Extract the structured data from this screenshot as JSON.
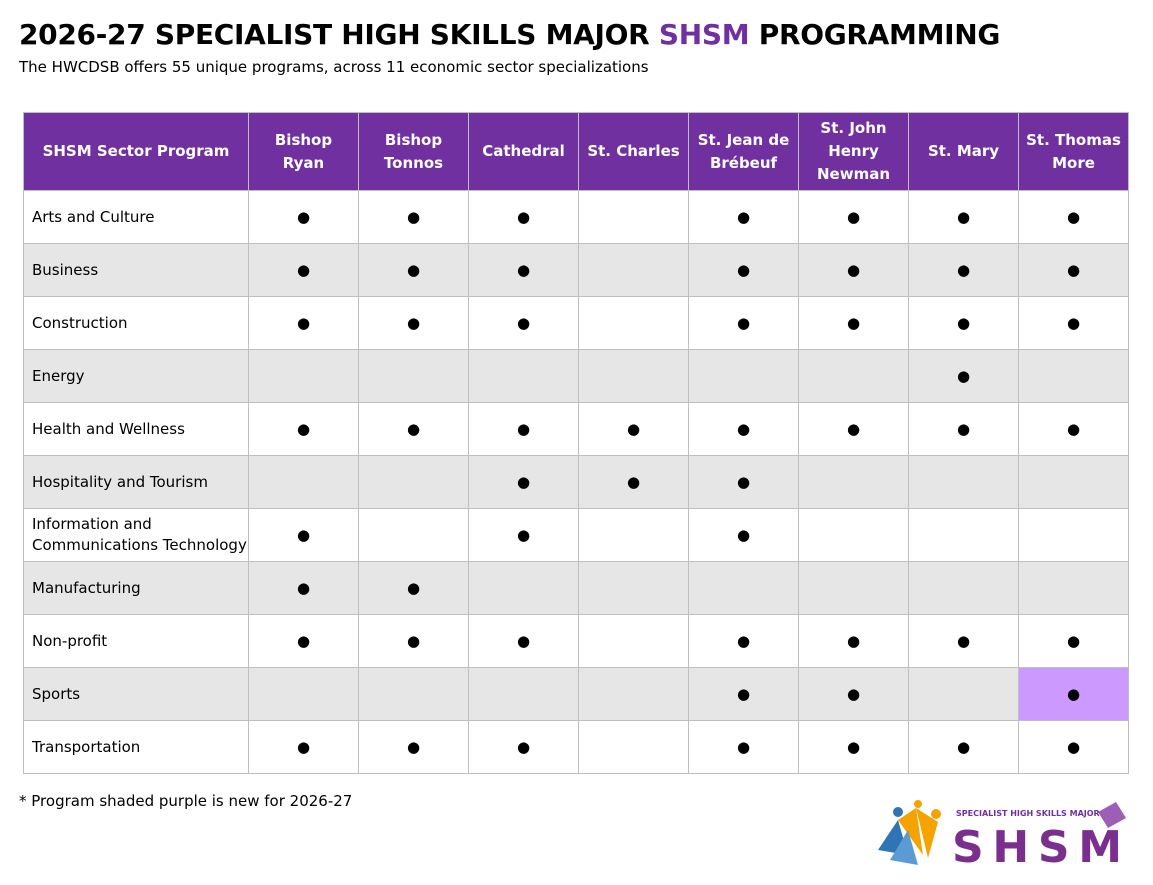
{
  "header": {
    "title_before": "2026-27 SPECIALIST HIGH SKILLS MAJOR",
    "title_highlight": "SHSM",
    "title_after": "PROGRAMMING",
    "subtitle": "The HWCDSB offers 55 unique programs, across 11 economic sector specializations"
  },
  "table": {
    "columns": [
      "SHSM Sector Program",
      "Bishop Ryan",
      "Bishop Tonnos",
      "Cathedral",
      "St. Charles",
      "St. Jean de Brébeuf",
      "St. John Henry Newman",
      "St. Mary",
      "St. Thomas More"
    ],
    "rows": [
      {
        "program": "Arts and Culture",
        "cells": [
          "●",
          "●",
          "●",
          null,
          "●",
          "●",
          "●",
          "●"
        ]
      },
      {
        "program": "Business",
        "cells": [
          "●",
          "●",
          "●",
          null,
          "●",
          "●",
          "●",
          "●"
        ]
      },
      {
        "program": "Construction",
        "cells": [
          "●",
          "●",
          "●",
          null,
          "●",
          "●",
          "●",
          "●"
        ]
      },
      {
        "program": "Energy",
        "cells": [
          null,
          null,
          null,
          null,
          null,
          null,
          "●",
          null
        ]
      },
      {
        "program": "Health and Wellness",
        "cells": [
          "●",
          "●",
          "●",
          "●",
          "●",
          "●",
          "●",
          "●"
        ]
      },
      {
        "program": "Hospitality and Tourism",
        "cells": [
          null,
          null,
          "●",
          "●",
          "●",
          null,
          null,
          null
        ]
      },
      {
        "program": "Information and Communications Technology",
        "cells": [
          "●",
          null,
          "●",
          null,
          "●",
          null,
          null,
          null
        ]
      },
      {
        "program": "Manufacturing",
        "cells": [
          "●",
          "●",
          null,
          null,
          null,
          null,
          null,
          null
        ]
      },
      {
        "program": "Non-profit",
        "cells": [
          "●",
          "●",
          "●",
          null,
          "●",
          "●",
          "●",
          "●"
        ]
      },
      {
        "program": "Sports",
        "cells": [
          null,
          null,
          null,
          null,
          "●",
          "●",
          null,
          "●"
        ]
      },
      {
        "program": "Transportation",
        "cells": [
          "●",
          "●",
          "●",
          null,
          "●",
          "●",
          "●",
          "●"
        ]
      }
    ],
    "new_cells": [
      {
        "row": 9,
        "col": 7
      }
    ]
  },
  "footnote": "* Program shaded purple is new for 2026-27",
  "logo": {
    "tagline": "SPECIALIST HIGH SKILLS MAJOR",
    "name": "SHSM"
  }
}
